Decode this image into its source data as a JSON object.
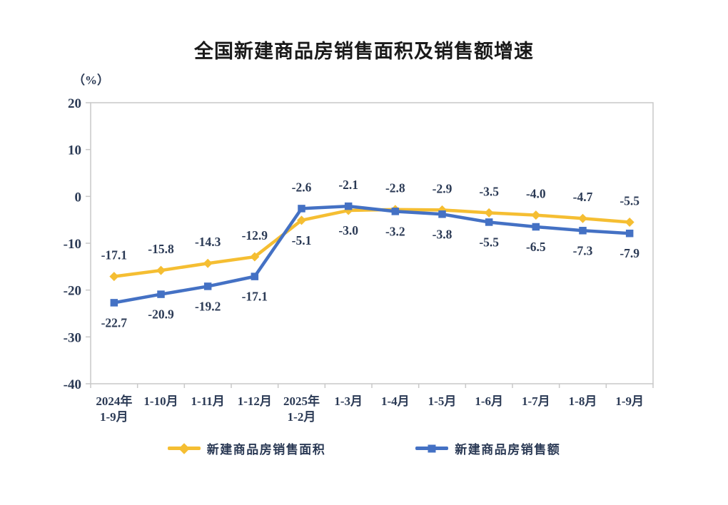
{
  "chart_data": {
    "type": "line",
    "title": "全国新建商品房销售面积及销售额增速",
    "ylabel": "（%）",
    "xlabel": "",
    "categories": [
      "2024年\n1-9月",
      "1-10月",
      "1-11月",
      "1-12月",
      "2025年\n1-2月",
      "1-3月",
      "1-4月",
      "1-5月",
      "1-6月",
      "1-7月",
      "1-8月",
      "1-9月"
    ],
    "series": [
      {
        "name": "新建商品房销售面积",
        "color": "#F5BE32",
        "marker": "diamond",
        "values": [
          -17.1,
          -15.8,
          -14.3,
          -12.9,
          -5.1,
          -3.0,
          -2.8,
          -2.9,
          -3.5,
          -4.0,
          -4.7,
          -5.5
        ],
        "label_side": [
          "above",
          "above",
          "above",
          "above",
          "below",
          "below",
          "above",
          "above",
          "above",
          "above",
          "above",
          "above"
        ]
      },
      {
        "name": "新建商品房销售额",
        "color": "#4471C4",
        "marker": "square",
        "values": [
          -22.7,
          -20.9,
          -19.2,
          -17.1,
          -2.6,
          -2.1,
          -3.2,
          -3.8,
          -5.5,
          -6.5,
          -7.3,
          -7.9
        ],
        "label_side": [
          "below",
          "below",
          "below",
          "below",
          "above",
          "above",
          "below",
          "below",
          "below",
          "below",
          "below",
          "below"
        ]
      }
    ],
    "y_axis": {
      "min": -40,
      "max": 20,
      "step": 10,
      "ticks": [
        20,
        10,
        0,
        -10,
        -20,
        -30,
        -40
      ]
    },
    "ylim": [
      -40,
      20
    ],
    "grid": false,
    "data_labels": true,
    "label_format": "one_decimal",
    "legend_position": "bottom"
  },
  "colors": {
    "frame": "#c9c9c9",
    "text": "#2b3a55",
    "title_text": "#1a1a1a",
    "background": "#ffffff"
  }
}
